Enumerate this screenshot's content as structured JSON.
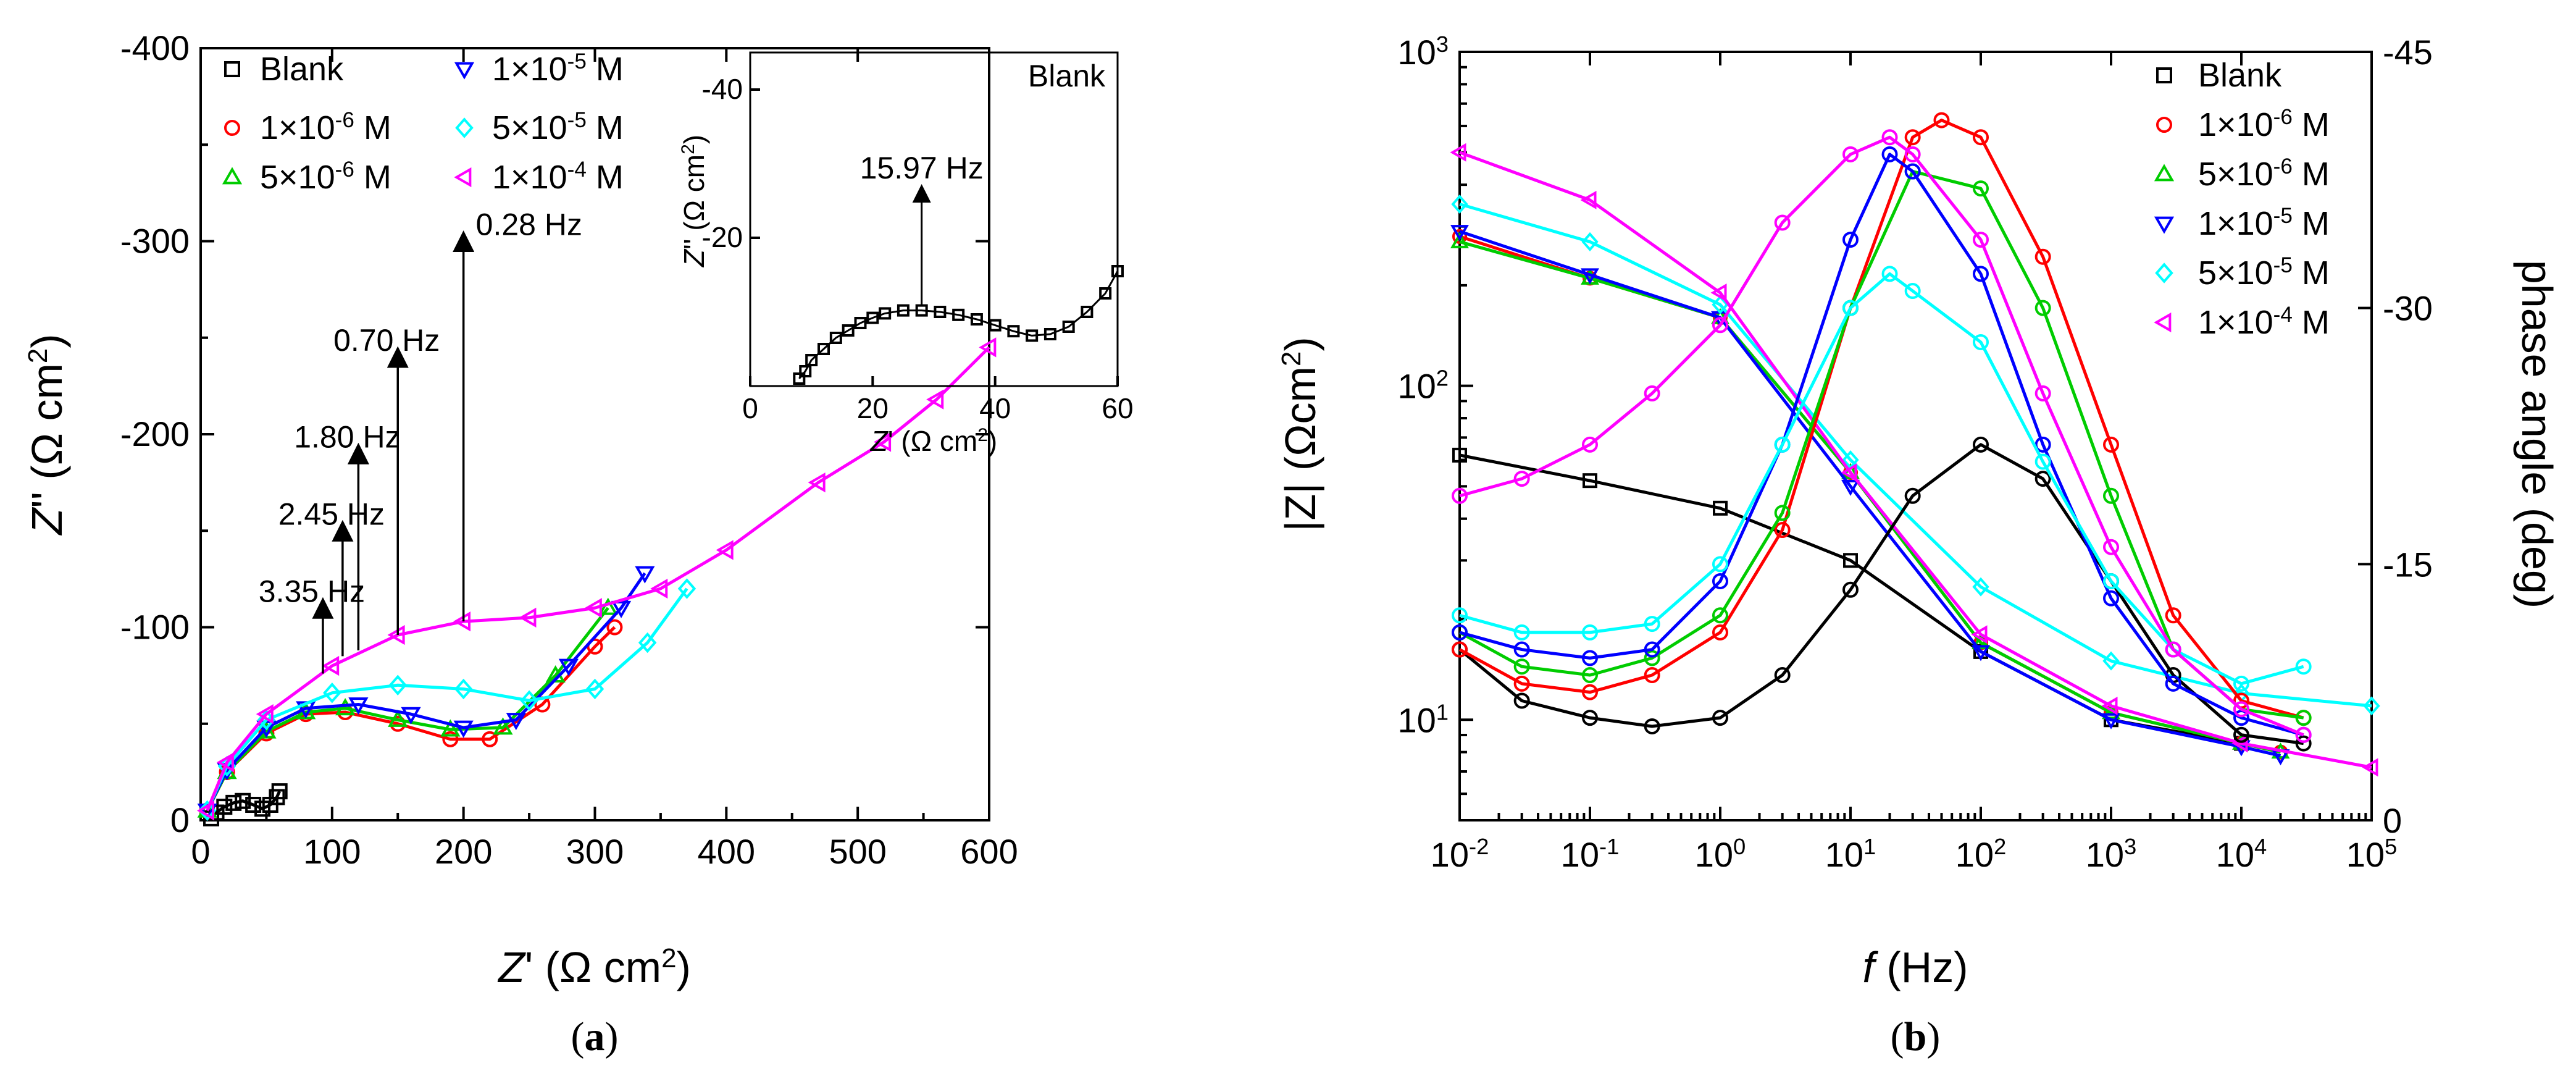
{
  "colors": {
    "Blank": "#000000",
    "1e-6": "#ff0000",
    "5e-6": "#00cc00",
    "1e-5": "#0000ff",
    "5e-5": "#00ffff",
    "1e-4": "#ff00ff"
  },
  "legend_labels": [
    "Blank",
    "1×10^-6 M",
    "5×10^-6 M",
    "1×10^-5 M",
    "5×10^-5 M",
    "1×10^-4 M"
  ],
  "chart_data": [
    {
      "id": "a",
      "type": "scatter",
      "caption": "(a)",
      "xlabel": "Z' (Ω cm²)",
      "ylabel": "Z'' (Ω cm²)",
      "xlim": [
        0,
        600
      ],
      "ylim": [
        0,
        -400
      ],
      "xticks": [
        "0",
        "100",
        "200",
        "300",
        "400",
        "500",
        "600"
      ],
      "yticks": [
        "0",
        "-100",
        "-200",
        "-300",
        "-400"
      ],
      "annotations": [
        "3.35 Hz",
        "2.45 Hz",
        "1.80 Hz",
        "0.70 Hz",
        "0.28 Hz"
      ],
      "series": [
        {
          "name": "Blank",
          "marker": "square",
          "x": [
            8,
            12,
            18,
            25,
            32,
            40,
            47,
            53,
            58,
            60
          ],
          "y": [
            -1,
            -4,
            -7,
            -9,
            -10,
            -8,
            -6,
            -8,
            -12,
            -15
          ]
        },
        {
          "name": "1×10^-6 M",
          "marker": "circle",
          "x": [
            5,
            20,
            50,
            80,
            110,
            150,
            190,
            220,
            260,
            300,
            315
          ],
          "y": [
            -5,
            -25,
            -45,
            -55,
            -56,
            -50,
            -42,
            -42,
            -60,
            -90,
            -100
          ]
        },
        {
          "name": "5×10^-6 M",
          "marker": "triangle-up",
          "x": [
            5,
            20,
            50,
            80,
            110,
            150,
            190,
            230,
            270,
            310
          ],
          "y": [
            -5,
            -25,
            -46,
            -56,
            -58,
            -52,
            -47,
            -48,
            -75,
            -110
          ]
        },
        {
          "name": "1×10^-5 M",
          "marker": "triangle-down",
          "x": [
            5,
            20,
            50,
            80,
            120,
            160,
            200,
            240,
            280,
            320,
            338
          ],
          "y": [
            -5,
            -26,
            -48,
            -58,
            -60,
            -55,
            -48,
            -52,
            -80,
            -110,
            -128
          ]
        },
        {
          "name": "5×10^-5 M",
          "marker": "diamond",
          "x": [
            5,
            20,
            50,
            100,
            150,
            200,
            250,
            300,
            340,
            370
          ],
          "y": [
            -5,
            -28,
            -52,
            -66,
            -70,
            -68,
            -62,
            -68,
            -92,
            -120
          ]
        },
        {
          "name": "1×10^-4 M",
          "marker": "triangle-left",
          "x": [
            5,
            20,
            50,
            100,
            150,
            200,
            250,
            300,
            350,
            400,
            470,
            520,
            560,
            600
          ],
          "y": [
            -5,
            -30,
            -55,
            -80,
            -96,
            -103,
            -105,
            -110,
            -120,
            -140,
            -175,
            -196,
            -218,
            -245
          ]
        }
      ],
      "inset": {
        "label": "Blank",
        "annotation": "15.97 Hz",
        "xlabel": "Z' (Ω cm²)",
        "ylabel": "Z'' (Ω cm²)",
        "xlim": [
          0,
          60
        ],
        "ylim": [
          0,
          -45
        ],
        "xticks": [
          "0",
          "20",
          "40",
          "60"
        ],
        "yticks": [
          "-20",
          "-40"
        ],
        "x": [
          8,
          9,
          10,
          12,
          14,
          16,
          18,
          20,
          22,
          25,
          28,
          31,
          34,
          37,
          40,
          43,
          46,
          49,
          52,
          55,
          58,
          60
        ],
        "y": [
          -1,
          -2,
          -3.5,
          -5,
          -6.5,
          -7.5,
          -8.5,
          -9.2,
          -9.8,
          -10.2,
          -10.2,
          -10,
          -9.6,
          -9,
          -8.2,
          -7.4,
          -6.8,
          -7,
          -8,
          -10,
          -12.5,
          -15.5
        ]
      }
    },
    {
      "id": "b",
      "type": "line",
      "caption": "(b)",
      "xlabel": "f (Hz)",
      "ylabel": "|Z| (Ωcm²)",
      "y2label": "phase angle (deg)",
      "xlim": [
        0.01,
        100000
      ],
      "ylim": [
        5,
        1000
      ],
      "y2lim": [
        0,
        -45
      ],
      "xticks": [
        "10^-2",
        "10^-1",
        "10^0",
        "10^1",
        "10^2",
        "10^3",
        "10^4",
        "10^5"
      ],
      "yticks": [
        "10^1",
        "10^2",
        "10^3"
      ],
      "y2ticks": [
        "0",
        "-15",
        "-30",
        "-45"
      ],
      "modulus": [
        {
          "name": "Blank",
          "f": [
            0.01,
            0.1,
            1,
            10,
            100,
            1000,
            10000
          ],
          "z": [
            62,
            52,
            43,
            30,
            16,
            10,
            8.5
          ]
        },
        {
          "name": "1×10^-6 M",
          "f": [
            0.01,
            0.1,
            1,
            10,
            100,
            1000,
            10000,
            20000
          ],
          "z": [
            280,
            210,
            160,
            55,
            17,
            10.5,
            8.5,
            8
          ]
        },
        {
          "name": "5×10^-6 M",
          "f": [
            0.01,
            0.1,
            1,
            10,
            100,
            1000,
            10000,
            20000
          ],
          "z": [
            270,
            210,
            160,
            55,
            17,
            10.5,
            8.5,
            8
          ]
        },
        {
          "name": "1×10^-5 M",
          "f": [
            0.01,
            0.1,
            1,
            10,
            100,
            1000,
            10000,
            20000
          ],
          "z": [
            290,
            215,
            160,
            50,
            16,
            10,
            8.3,
            7.8
          ]
        },
        {
          "name": "5×10^-5 M",
          "f": [
            0.01,
            0.1,
            1,
            10,
            100,
            1000,
            10000,
            100000
          ],
          "z": [
            350,
            270,
            175,
            60,
            25,
            15,
            12,
            11
          ]
        },
        {
          "name": "1×10^-4 M",
          "f": [
            0.01,
            0.1,
            1,
            10,
            100,
            1000,
            10000,
            100000
          ],
          "z": [
            500,
            360,
            190,
            55,
            18,
            11,
            8.5,
            7.2
          ]
        }
      ],
      "phase": [
        {
          "name": "Blank",
          "f": [
            0.01,
            0.03,
            0.1,
            0.3,
            1,
            3,
            10,
            30,
            100,
            300,
            1000,
            3000,
            10000,
            30000
          ],
          "deg": [
            -10,
            -7,
            -6,
            -5.5,
            -6,
            -8.5,
            -13.5,
            -19,
            -22,
            -20,
            -14,
            -8.5,
            -5,
            -4.5
          ]
        },
        {
          "name": "1×10^-6 M",
          "f": [
            0.01,
            0.03,
            0.1,
            0.3,
            1,
            3,
            10,
            30,
            50,
            100,
            300,
            1000,
            3000,
            10000,
            30000
          ],
          "deg": [
            -10,
            -8,
            -7.5,
            -8.5,
            -11,
            -17,
            -30,
            -40,
            -41,
            -40,
            -33,
            -22,
            -12,
            -7,
            -6
          ]
        },
        {
          "name": "5×10^-6 M",
          "f": [
            0.01,
            0.03,
            0.1,
            0.3,
            1,
            3,
            10,
            30,
            100,
            300,
            1000,
            3000,
            10000,
            30000
          ],
          "deg": [
            -11,
            -9,
            -8.5,
            -9.5,
            -12,
            -18,
            -30,
            -38,
            -37,
            -30,
            -19,
            -10,
            -6.5,
            -6
          ]
        },
        {
          "name": "1×10^-5 M",
          "f": [
            0.01,
            0.03,
            0.1,
            0.3,
            1,
            3,
            10,
            20,
            30,
            100,
            300,
            1000,
            3000,
            10000,
            30000
          ],
          "deg": [
            -11,
            -10,
            -9.5,
            -10,
            -14,
            -22,
            -34,
            -39,
            -38,
            -32,
            -22,
            -13,
            -8,
            -6,
            -5
          ]
        },
        {
          "name": "5×10^-5 M",
          "f": [
            0.01,
            0.03,
            0.1,
            0.3,
            1,
            3,
            10,
            20,
            30,
            100,
            300,
            1000,
            3000,
            10000,
            30000
          ],
          "deg": [
            -12,
            -11,
            -11,
            -11.5,
            -15,
            -22,
            -30,
            -32,
            -31,
            -28,
            -21,
            -14,
            -10,
            -8,
            -9
          ]
        },
        {
          "name": "1×10^-4 M",
          "f": [
            0.01,
            0.03,
            0.1,
            0.3,
            1,
            3,
            10,
            20,
            30,
            100,
            300,
            1000,
            3000,
            10000,
            30000
          ],
          "deg": [
            -19,
            -20,
            -22,
            -25,
            -29,
            -35,
            -39,
            -40,
            -39,
            -34,
            -25,
            -16,
            -10,
            -6.5,
            -5
          ]
        }
      ]
    }
  ]
}
